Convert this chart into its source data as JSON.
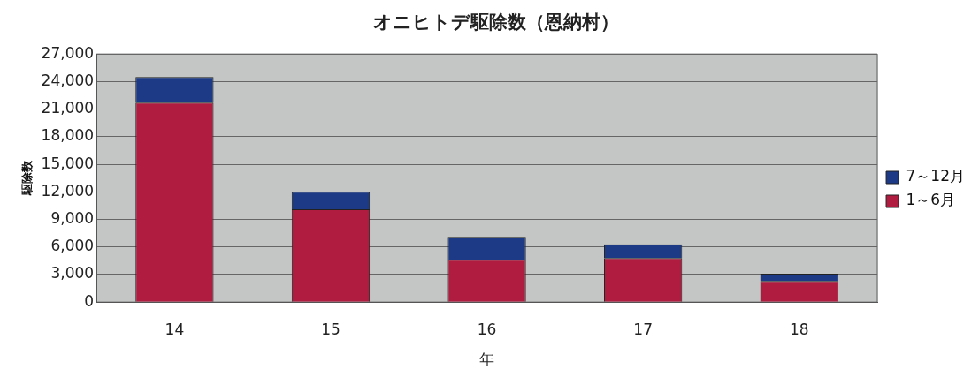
{
  "chart_data": {
    "type": "bar",
    "title": "オニヒトデ駆除数（恩納村）",
    "xlabel": "年",
    "ylabel": "駆除数",
    "categories": [
      "14",
      "15",
      "16",
      "17",
      "18"
    ],
    "stacked": true,
    "series": [
      {
        "name": "1～6月",
        "color": "#b01c40",
        "values": [
          21700,
          10100,
          4600,
          4800,
          2300
        ]
      },
      {
        "name": "7～12月",
        "color": "#1c3a86",
        "values": [
          2800,
          1900,
          2500,
          1500,
          800
        ]
      }
    ],
    "ylim": [
      0,
      27000
    ],
    "yticks": [
      {
        "value": 0,
        "label": "0"
      },
      {
        "value": 3000,
        "label": "3,000"
      },
      {
        "value": 6000,
        "label": "6,000"
      },
      {
        "value": 9000,
        "label": "9,000"
      },
      {
        "value": 12000,
        "label": "12,000"
      },
      {
        "value": 15000,
        "label": "15,000"
      },
      {
        "value": 18000,
        "label": "18,000"
      },
      {
        "value": 21000,
        "label": "21,000"
      },
      {
        "value": 24000,
        "label": "24,000"
      },
      {
        "value": 27000,
        "label": "27,000"
      }
    ],
    "grid": "y",
    "legend": "right"
  }
}
